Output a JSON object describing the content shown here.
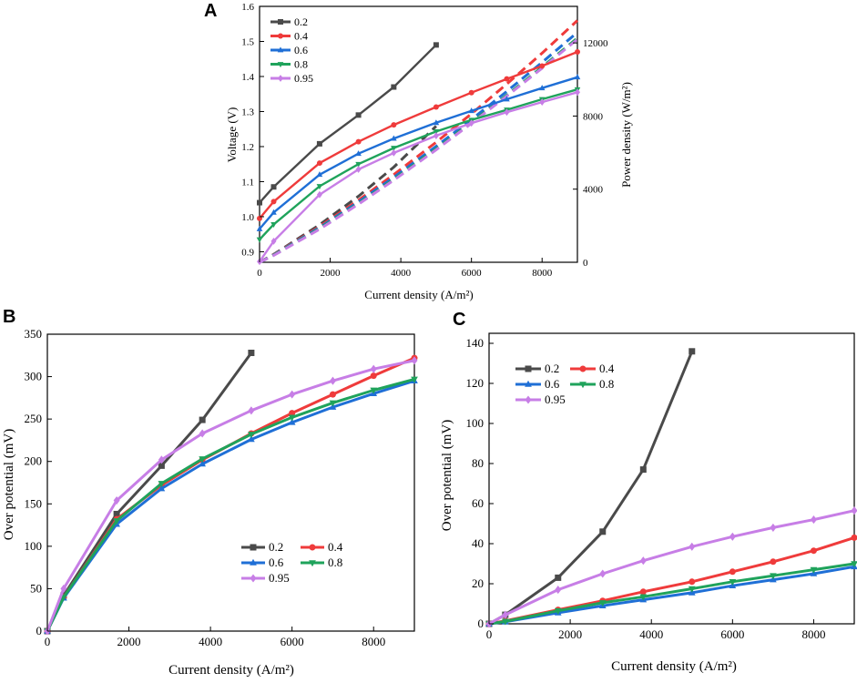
{
  "colors": {
    "0.2": "#4a4a4a",
    "0.4": "#ef3b3b",
    "0.6": "#1f6fd6",
    "0.8": "#1fa35b",
    "0.95": "#c77ee6"
  },
  "markers": {
    "0.2": "square",
    "0.4": "circle",
    "0.6": "triangle-up",
    "0.8": "triangle-down",
    "0.95": "diamond"
  },
  "chart_data": [
    {
      "panel": "A",
      "type": "line",
      "xlabel": "Current density (A/m²)",
      "ylabel": "Voltage (V)",
      "y2label": "Power density (W/m²)",
      "xlim": [
        0,
        9000
      ],
      "ylim": [
        0.87,
        1.6
      ],
      "y2lim": [
        0,
        14000
      ],
      "xticks": [
        "0",
        "2000",
        "4000",
        "6000",
        "8000"
      ],
      "yticks": [
        "0.9",
        "1.0",
        "1.1",
        "1.2",
        "1.3",
        "1.4",
        "1.5",
        "1.6"
      ],
      "y2ticks": [
        "0",
        "4000",
        "8000",
        "12000"
      ],
      "legend": [
        "0.2",
        "0.4",
        "0.6",
        "0.8",
        "0.95"
      ],
      "voltage_series": [
        {
          "name": "0.2",
          "x": [
            0,
            400,
            1700,
            2800,
            3800,
            5000
          ],
          "y": [
            1.04,
            1.085,
            1.208,
            1.29,
            1.37,
            1.49
          ]
        },
        {
          "name": "0.4",
          "x": [
            0,
            400,
            1700,
            2800,
            3800,
            5000,
            6000,
            7000,
            8000,
            9000
          ],
          "y": [
            0.995,
            1.043,
            1.153,
            1.214,
            1.262,
            1.313,
            1.354,
            1.393,
            1.43,
            1.47
          ]
        },
        {
          "name": "0.6",
          "x": [
            0,
            400,
            1700,
            2800,
            3800,
            5000,
            6000,
            7000,
            8000,
            9000
          ],
          "y": [
            0.965,
            1.012,
            1.12,
            1.18,
            1.223,
            1.268,
            1.302,
            1.335,
            1.367,
            1.398
          ]
        },
        {
          "name": "0.8",
          "x": [
            0,
            400,
            1700,
            2800,
            3800,
            5000,
            6000,
            7000,
            8000,
            9000
          ],
          "y": [
            0.935,
            0.978,
            1.087,
            1.15,
            1.196,
            1.243,
            1.276,
            1.305,
            1.335,
            1.363
          ]
        },
        {
          "name": "0.95",
          "x": [
            0,
            400,
            1700,
            2800,
            3800,
            5000,
            6000,
            7000,
            8000,
            9000
          ],
          "y": [
            0.872,
            0.93,
            1.063,
            1.135,
            1.182,
            1.231,
            1.267,
            1.298,
            1.327,
            1.355
          ]
        }
      ],
      "power_series": [
        {
          "name": "0.2",
          "x": [
            0,
            400,
            1700,
            2800,
            3800,
            5000
          ],
          "y": [
            0,
            434,
            2054,
            3612,
            5206,
            7450
          ]
        },
        {
          "name": "0.4",
          "x": [
            0,
            400,
            1700,
            2800,
            3800,
            5000,
            6000,
            7000,
            8000,
            9000
          ],
          "y": [
            0,
            417,
            1960,
            3399,
            4796,
            6565,
            8124,
            9751,
            11440,
            13230
          ]
        },
        {
          "name": "0.6",
          "x": [
            0,
            400,
            1700,
            2800,
            3800,
            5000,
            6000,
            7000,
            8000,
            9000
          ],
          "y": [
            0,
            405,
            1904,
            3304,
            4647,
            6340,
            7812,
            9345,
            10936,
            12582
          ]
        },
        {
          "name": "0.8",
          "x": [
            0,
            400,
            1700,
            2800,
            3800,
            5000,
            6000,
            7000,
            8000,
            9000
          ],
          "y": [
            0,
            391,
            1848,
            3220,
            4545,
            6215,
            7656,
            9135,
            10680,
            12267
          ]
        },
        {
          "name": "0.95",
          "x": [
            0,
            400,
            1700,
            2800,
            3800,
            5000,
            6000,
            7000,
            8000,
            9000
          ],
          "y": [
            0,
            372,
            1807,
            3178,
            4492,
            6155,
            7602,
            9086,
            10616,
            12195
          ]
        }
      ]
    },
    {
      "panel": "B",
      "type": "line",
      "xlabel": "Current density (A/m²)",
      "ylabel": "Over potential (mV)",
      "xlim": [
        0,
        9000
      ],
      "ylim": [
        0,
        350
      ],
      "xticks": [
        "0",
        "2000",
        "4000",
        "6000",
        "8000"
      ],
      "yticks": [
        "0",
        "50",
        "100",
        "150",
        "200",
        "250",
        "300",
        "350"
      ],
      "legend": [
        "0.2",
        "0.4",
        "0.6",
        "0.8",
        "0.95"
      ],
      "series": [
        {
          "name": "0.2",
          "x": [
            0,
            400,
            1700,
            2800,
            3800,
            5000
          ],
          "y": [
            0,
            42,
            138,
            195,
            249,
            328
          ]
        },
        {
          "name": "0.4",
          "x": [
            0,
            400,
            1700,
            2800,
            3800,
            5000,
            6000,
            7000,
            8000,
            9000
          ],
          "y": [
            0,
            40,
            132,
            172,
            202,
            233,
            257,
            279,
            301,
            322
          ]
        },
        {
          "name": "0.6",
          "x": [
            0,
            400,
            1700,
            2800,
            3800,
            5000,
            6000,
            7000,
            8000,
            9000
          ],
          "y": [
            0,
            39,
            126,
            168,
            197,
            226,
            246,
            264,
            280,
            295
          ]
        },
        {
          "name": "0.8",
          "x": [
            0,
            400,
            1700,
            2800,
            3800,
            5000,
            6000,
            7000,
            8000,
            9000
          ],
          "y": [
            0,
            40,
            130,
            174,
            203,
            232,
            252,
            269,
            284,
            297
          ]
        },
        {
          "name": "0.95",
          "x": [
            0,
            400,
            1700,
            2800,
            3800,
            5000,
            6000,
            7000,
            8000,
            9000
          ],
          "y": [
            0,
            50,
            154,
            202,
            233,
            260,
            279,
            295,
            309,
            319
          ]
        }
      ]
    },
    {
      "panel": "C",
      "type": "line",
      "xlabel": "Current density (A/m²)",
      "ylabel": "Over potential (mV)",
      "xlim": [
        0,
        9000
      ],
      "ylim": [
        0,
        145
      ],
      "xticks": [
        "0",
        "2000",
        "4000",
        "6000",
        "8000"
      ],
      "yticks": [
        "0",
        "20",
        "40",
        "60",
        "80",
        "100",
        "120",
        "140"
      ],
      "legend": [
        "0.2",
        "0.4",
        "0.6",
        "0.8",
        "0.95"
      ],
      "series": [
        {
          "name": "0.2",
          "x": [
            0,
            400,
            1700,
            2800,
            3800,
            5000
          ],
          "y": [
            0,
            4.5,
            23,
            46,
            77,
            136
          ]
        },
        {
          "name": "0.4",
          "x": [
            0,
            400,
            1700,
            2800,
            3800,
            5000,
            6000,
            7000,
            8000,
            9000
          ],
          "y": [
            0,
            1.5,
            7,
            11.5,
            16,
            21,
            26,
            31,
            36.5,
            43
          ]
        },
        {
          "name": "0.6",
          "x": [
            0,
            400,
            1700,
            2800,
            3800,
            5000,
            6000,
            7000,
            8000,
            9000
          ],
          "y": [
            0,
            1,
            5.5,
            9,
            12,
            15.5,
            19,
            22,
            25,
            28.5
          ]
        },
        {
          "name": "0.8",
          "x": [
            0,
            400,
            1700,
            2800,
            3800,
            5000,
            6000,
            7000,
            8000,
            9000
          ],
          "y": [
            0,
            1.2,
            6.5,
            10.5,
            13.5,
            17.5,
            21,
            24,
            27,
            30
          ]
        },
        {
          "name": "0.95",
          "x": [
            0,
            400,
            1700,
            2800,
            3800,
            5000,
            6000,
            7000,
            8000,
            9000
          ],
          "y": [
            0,
            4.5,
            17,
            25,
            31.5,
            38.5,
            43.5,
            48,
            52,
            56.5
          ]
        }
      ]
    }
  ]
}
